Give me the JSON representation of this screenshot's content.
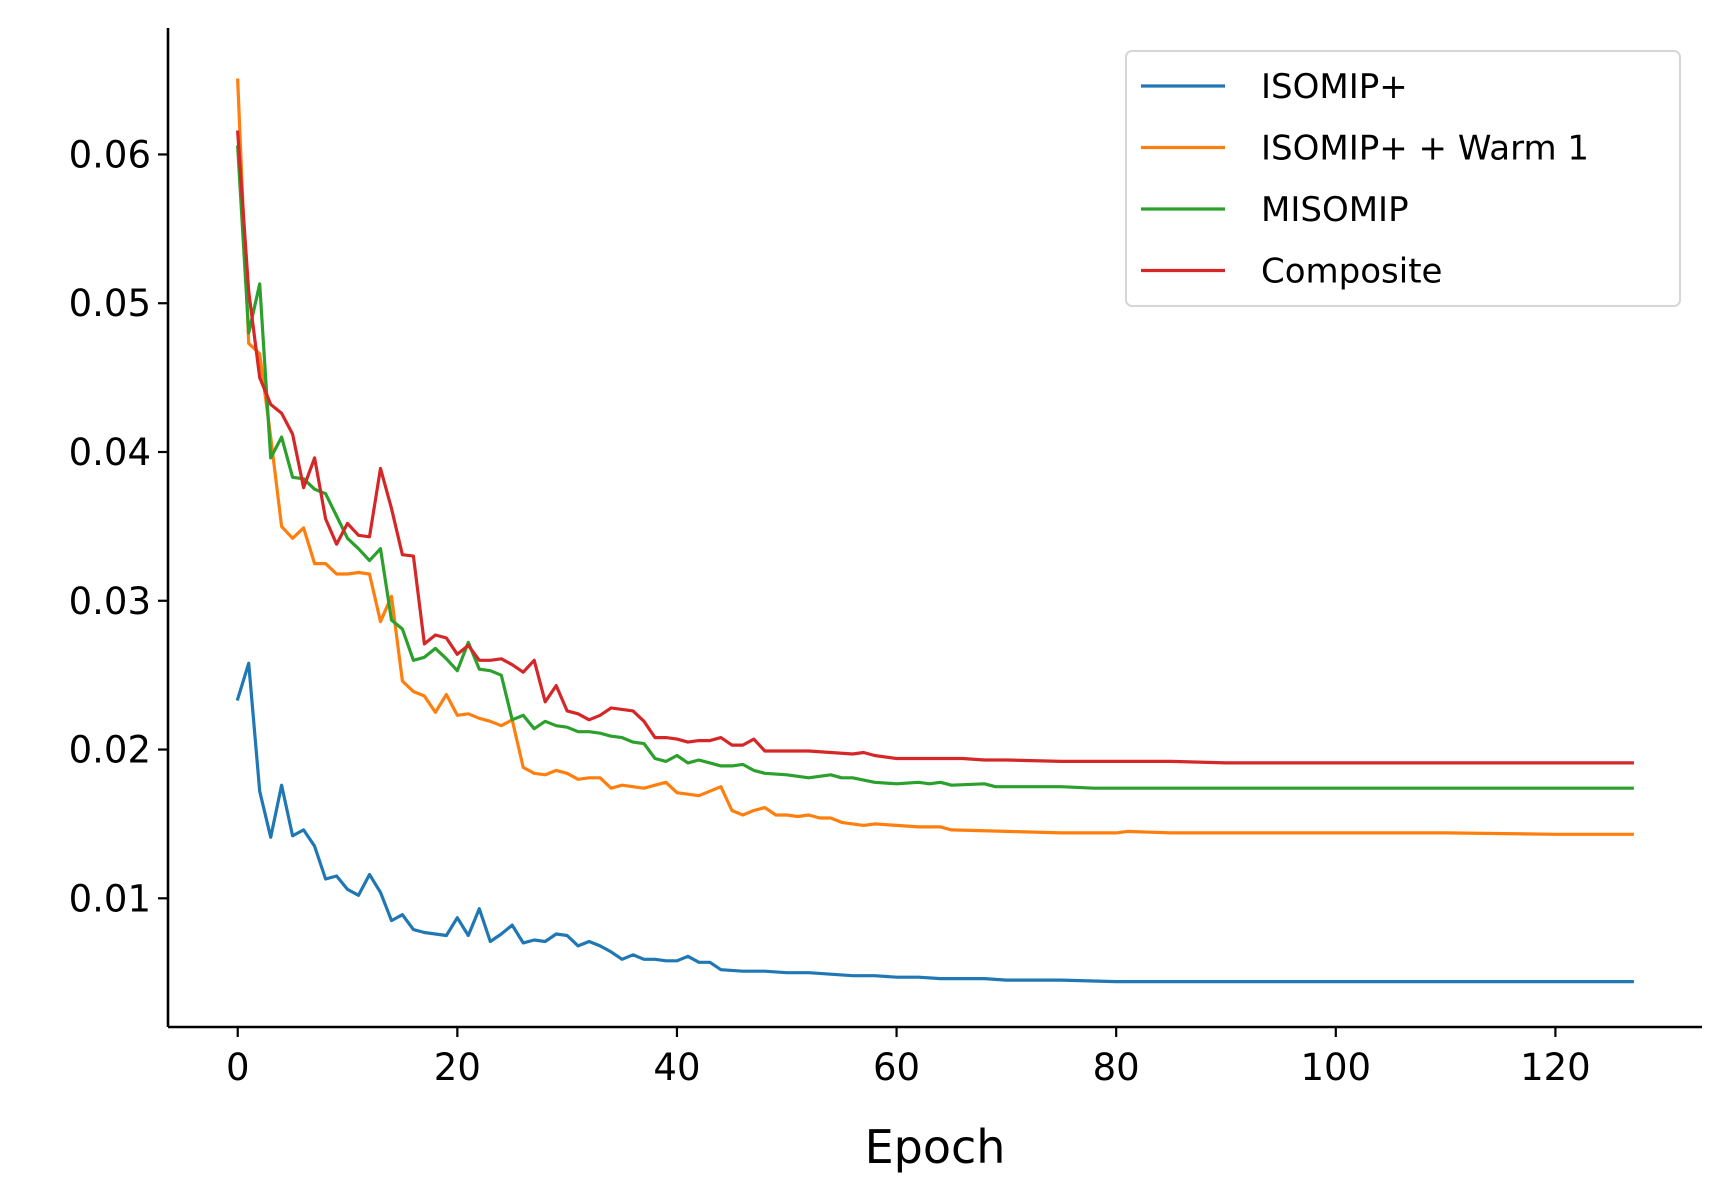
{
  "chart_data": {
    "type": "line",
    "title": "",
    "xlabel": "Epoch",
    "ylabel": "",
    "xlim": [
      -6.35,
      133.35
    ],
    "ylim": [
      0.00135,
      0.0685
    ],
    "x_ticks": [
      0,
      20,
      40,
      60,
      80,
      100,
      120
    ],
    "x_tick_labels": [
      "0",
      "20",
      "40",
      "60",
      "80",
      "100",
      "120"
    ],
    "y_ticks": [
      0.01,
      0.02,
      0.03,
      0.04,
      0.05,
      0.06
    ],
    "y_tick_labels": [
      "0.01",
      "0.02",
      "0.03",
      "0.04",
      "0.05",
      "0.06"
    ],
    "grid": false,
    "legend_position": "top-right",
    "series": [
      {
        "name": "ISOMIP+",
        "color": "#1f77b4",
        "points": [
          [
            0,
            0.0234
          ],
          [
            1,
            0.0258
          ],
          [
            2,
            0.0172
          ],
          [
            3,
            0.0141
          ],
          [
            4,
            0.0176
          ],
          [
            5,
            0.0142
          ],
          [
            6,
            0.0146
          ],
          [
            7,
            0.0135
          ],
          [
            8,
            0.0113
          ],
          [
            9,
            0.0115
          ],
          [
            10,
            0.0106
          ],
          [
            11,
            0.0102
          ],
          [
            12,
            0.0116
          ],
          [
            13,
            0.0104
          ],
          [
            14,
            0.0085
          ],
          [
            15,
            0.0089
          ],
          [
            16,
            0.0079
          ],
          [
            17,
            0.0077
          ],
          [
            18,
            0.0076
          ],
          [
            19,
            0.0075
          ],
          [
            20,
            0.0087
          ],
          [
            21,
            0.0075
          ],
          [
            22,
            0.0093
          ],
          [
            23,
            0.0071
          ],
          [
            24,
            0.0076
          ],
          [
            25,
            0.0082
          ],
          [
            26,
            0.007
          ],
          [
            27,
            0.0072
          ],
          [
            28,
            0.0071
          ],
          [
            29,
            0.0076
          ],
          [
            30,
            0.0075
          ],
          [
            31,
            0.0068
          ],
          [
            32,
            0.0071
          ],
          [
            33,
            0.0068
          ],
          [
            34,
            0.0064
          ],
          [
            35,
            0.0059
          ],
          [
            36,
            0.0062
          ],
          [
            37,
            0.0059
          ],
          [
            38,
            0.0059
          ],
          [
            39,
            0.0058
          ],
          [
            40,
            0.0058
          ],
          [
            41,
            0.0061
          ],
          [
            42,
            0.0057
          ],
          [
            43,
            0.0057
          ],
          [
            44,
            0.0052
          ],
          [
            46,
            0.0051
          ],
          [
            48,
            0.0051
          ],
          [
            50,
            0.005
          ],
          [
            52,
            0.005
          ],
          [
            54,
            0.0049
          ],
          [
            56,
            0.0048
          ],
          [
            58,
            0.0048
          ],
          [
            60,
            0.0047
          ],
          [
            62,
            0.0047
          ],
          [
            64,
            0.0046
          ],
          [
            66,
            0.0046
          ],
          [
            68,
            0.0046
          ],
          [
            70,
            0.0045
          ],
          [
            75,
            0.0045
          ],
          [
            80,
            0.0044
          ],
          [
            85,
            0.0044
          ],
          [
            90,
            0.0044
          ],
          [
            100,
            0.0044
          ],
          [
            110,
            0.0044
          ],
          [
            120,
            0.0044
          ],
          [
            127,
            0.0044
          ]
        ]
      },
      {
        "name": "ISOMIP+ + Warm 1",
        "color": "#ff7f0e",
        "points": [
          [
            0,
            0.065
          ],
          [
            1,
            0.0473
          ],
          [
            2,
            0.0466
          ],
          [
            3,
            0.041
          ],
          [
            4,
            0.035
          ],
          [
            5,
            0.0342
          ],
          [
            6,
            0.0349
          ],
          [
            7,
            0.0325
          ],
          [
            8,
            0.0325
          ],
          [
            9,
            0.0318
          ],
          [
            10,
            0.0318
          ],
          [
            11,
            0.0319
          ],
          [
            12,
            0.0318
          ],
          [
            13,
            0.0286
          ],
          [
            14,
            0.0303
          ],
          [
            15,
            0.0246
          ],
          [
            16,
            0.0239
          ],
          [
            17,
            0.0236
          ],
          [
            18,
            0.0225
          ],
          [
            19,
            0.0237
          ],
          [
            20,
            0.0223
          ],
          [
            21,
            0.0224
          ],
          [
            22,
            0.0221
          ],
          [
            23,
            0.0219
          ],
          [
            24,
            0.0216
          ],
          [
            25,
            0.022
          ],
          [
            26,
            0.0188
          ],
          [
            27,
            0.0184
          ],
          [
            28,
            0.0183
          ],
          [
            29,
            0.0186
          ],
          [
            30,
            0.0184
          ],
          [
            31,
            0.018
          ],
          [
            32,
            0.0181
          ],
          [
            33,
            0.0181
          ],
          [
            34,
            0.0174
          ],
          [
            35,
            0.0176
          ],
          [
            36,
            0.0175
          ],
          [
            37,
            0.0174
          ],
          [
            38,
            0.0176
          ],
          [
            39,
            0.0178
          ],
          [
            40,
            0.0171
          ],
          [
            41,
            0.017
          ],
          [
            42,
            0.0169
          ],
          [
            43,
            0.0172
          ],
          [
            44,
            0.0175
          ],
          [
            45,
            0.0159
          ],
          [
            46,
            0.0156
          ],
          [
            47,
            0.0159
          ],
          [
            48,
            0.0161
          ],
          [
            49,
            0.0156
          ],
          [
            50,
            0.0156
          ],
          [
            51,
            0.0155
          ],
          [
            52,
            0.0156
          ],
          [
            53,
            0.0154
          ],
          [
            54,
            0.0154
          ],
          [
            55,
            0.0151
          ],
          [
            56,
            0.015
          ],
          [
            57,
            0.0149
          ],
          [
            58,
            0.015
          ],
          [
            60,
            0.0149
          ],
          [
            62,
            0.0148
          ],
          [
            64,
            0.0148
          ],
          [
            65,
            0.0146
          ],
          [
            70,
            0.0145
          ],
          [
            75,
            0.0144
          ],
          [
            80,
            0.0144
          ],
          [
            81,
            0.0145
          ],
          [
            85,
            0.0144
          ],
          [
            90,
            0.0144
          ],
          [
            100,
            0.0144
          ],
          [
            110,
            0.0144
          ],
          [
            120,
            0.0143
          ],
          [
            127,
            0.0143
          ]
        ]
      },
      {
        "name": "MISOMIP",
        "color": "#2ca02c",
        "points": [
          [
            0,
            0.0605
          ],
          [
            1,
            0.048
          ],
          [
            2,
            0.0513
          ],
          [
            3,
            0.0396
          ],
          [
            4,
            0.041
          ],
          [
            5,
            0.0383
          ],
          [
            6,
            0.0382
          ],
          [
            7,
            0.0375
          ],
          [
            8,
            0.0372
          ],
          [
            9,
            0.0357
          ],
          [
            10,
            0.0342
          ],
          [
            11,
            0.0335
          ],
          [
            12,
            0.0327
          ],
          [
            13,
            0.0335
          ],
          [
            14,
            0.0287
          ],
          [
            15,
            0.0281
          ],
          [
            16,
            0.026
          ],
          [
            17,
            0.0262
          ],
          [
            18,
            0.0268
          ],
          [
            19,
            0.0261
          ],
          [
            20,
            0.0253
          ],
          [
            21,
            0.0272
          ],
          [
            22,
            0.0254
          ],
          [
            23,
            0.0253
          ],
          [
            24,
            0.025
          ],
          [
            25,
            0.022
          ],
          [
            26,
            0.0223
          ],
          [
            27,
            0.0214
          ],
          [
            28,
            0.0219
          ],
          [
            29,
            0.0216
          ],
          [
            30,
            0.0215
          ],
          [
            31,
            0.0212
          ],
          [
            32,
            0.0212
          ],
          [
            33,
            0.0211
          ],
          [
            34,
            0.0209
          ],
          [
            35,
            0.0208
          ],
          [
            36,
            0.0205
          ],
          [
            37,
            0.0204
          ],
          [
            38,
            0.0194
          ],
          [
            39,
            0.0192
          ],
          [
            40,
            0.0196
          ],
          [
            41,
            0.0191
          ],
          [
            42,
            0.0193
          ],
          [
            43,
            0.0191
          ],
          [
            44,
            0.0189
          ],
          [
            45,
            0.0189
          ],
          [
            46,
            0.019
          ],
          [
            47,
            0.0186
          ],
          [
            48,
            0.0184
          ],
          [
            50,
            0.0183
          ],
          [
            52,
            0.0181
          ],
          [
            54,
            0.0183
          ],
          [
            55,
            0.0181
          ],
          [
            56,
            0.0181
          ],
          [
            58,
            0.0178
          ],
          [
            60,
            0.0177
          ],
          [
            62,
            0.0178
          ],
          [
            63,
            0.0177
          ],
          [
            64,
            0.0178
          ],
          [
            65,
            0.0176
          ],
          [
            68,
            0.0177
          ],
          [
            69,
            0.0175
          ],
          [
            75,
            0.0175
          ],
          [
            78,
            0.0174
          ],
          [
            85,
            0.0174
          ],
          [
            90,
            0.0174
          ],
          [
            100,
            0.0174
          ],
          [
            110,
            0.0174
          ],
          [
            120,
            0.0174
          ],
          [
            127,
            0.0174
          ]
        ]
      },
      {
        "name": "Composite",
        "color": "#d62728",
        "points": [
          [
            0,
            0.0615
          ],
          [
            1,
            0.0508
          ],
          [
            2,
            0.045
          ],
          [
            3,
            0.0432
          ],
          [
            4,
            0.0426
          ],
          [
            5,
            0.0412
          ],
          [
            6,
            0.0376
          ],
          [
            7,
            0.0396
          ],
          [
            8,
            0.0355
          ],
          [
            9,
            0.0338
          ],
          [
            10,
            0.0352
          ],
          [
            11,
            0.0344
          ],
          [
            12,
            0.0343
          ],
          [
            13,
            0.0389
          ],
          [
            14,
            0.0362
          ],
          [
            15,
            0.0331
          ],
          [
            16,
            0.033
          ],
          [
            17,
            0.0271
          ],
          [
            18,
            0.0277
          ],
          [
            19,
            0.0275
          ],
          [
            20,
            0.0264
          ],
          [
            21,
            0.027
          ],
          [
            22,
            0.026
          ],
          [
            23,
            0.026
          ],
          [
            24,
            0.0261
          ],
          [
            25,
            0.0257
          ],
          [
            26,
            0.0252
          ],
          [
            27,
            0.026
          ],
          [
            28,
            0.0232
          ],
          [
            29,
            0.0243
          ],
          [
            30,
            0.0226
          ],
          [
            31,
            0.0224
          ],
          [
            32,
            0.022
          ],
          [
            33,
            0.0223
          ],
          [
            34,
            0.0228
          ],
          [
            35,
            0.0227
          ],
          [
            36,
            0.0226
          ],
          [
            37,
            0.0219
          ],
          [
            38,
            0.0208
          ],
          [
            39,
            0.0208
          ],
          [
            40,
            0.0207
          ],
          [
            41,
            0.0205
          ],
          [
            42,
            0.0206
          ],
          [
            43,
            0.0206
          ],
          [
            44,
            0.0208
          ],
          [
            45,
            0.0203
          ],
          [
            46,
            0.0203
          ],
          [
            47,
            0.0207
          ],
          [
            48,
            0.0199
          ],
          [
            50,
            0.0199
          ],
          [
            52,
            0.0199
          ],
          [
            54,
            0.0198
          ],
          [
            56,
            0.0197
          ],
          [
            57,
            0.0198
          ],
          [
            58,
            0.0196
          ],
          [
            60,
            0.0194
          ],
          [
            62,
            0.0194
          ],
          [
            64,
            0.0194
          ],
          [
            66,
            0.0194
          ],
          [
            68,
            0.0193
          ],
          [
            70,
            0.0193
          ],
          [
            75,
            0.0192
          ],
          [
            80,
            0.0192
          ],
          [
            85,
            0.0192
          ],
          [
            90,
            0.0191
          ],
          [
            100,
            0.0191
          ],
          [
            110,
            0.0191
          ],
          [
            120,
            0.0191
          ],
          [
            127,
            0.0191
          ]
        ]
      }
    ]
  }
}
